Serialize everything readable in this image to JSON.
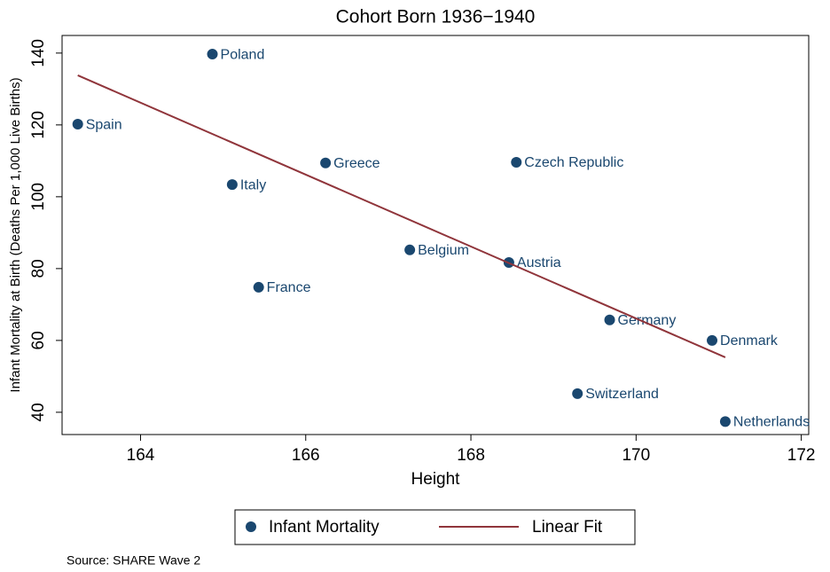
{
  "chart_data": {
    "type": "scatter",
    "title": "Cohort Born 1936−1940",
    "x_label": "Height",
    "y_label": "Infant Mortality at Birth (Deaths Per 1,000 Live Births)",
    "source": "Source: SHARE Wave 2",
    "xlim": [
      163.05,
      172.09
    ],
    "ylim": [
      33.8,
      144.9
    ],
    "xticks": [
      164,
      166,
      168,
      170,
      172
    ],
    "yticks": [
      40,
      60,
      80,
      100,
      120,
      140
    ],
    "series": [
      {
        "name": "Infant Mortality",
        "type": "scatter",
        "color": "#1a476f",
        "labels": [
          "Poland",
          "Spain",
          "Greece",
          "Czech Republic",
          "Italy",
          "Belgium",
          "Austria",
          "France",
          "Germany",
          "Denmark",
          "Switzerland",
          "Netherlands"
        ],
        "x": [
          164.87,
          163.24,
          166.24,
          168.55,
          165.11,
          167.26,
          168.46,
          165.43,
          169.68,
          170.92,
          169.29,
          171.08
        ],
        "values": [
          139.7,
          120.2,
          109.4,
          109.6,
          103.4,
          85.2,
          81.7,
          74.8,
          65.7,
          60.0,
          45.2,
          37.4
        ]
      },
      {
        "name": "Linear Fit",
        "type": "line",
        "color": "#90353b",
        "x": [
          163.24,
          171.08
        ],
        "values": [
          133.8,
          55.3
        ]
      }
    ]
  }
}
